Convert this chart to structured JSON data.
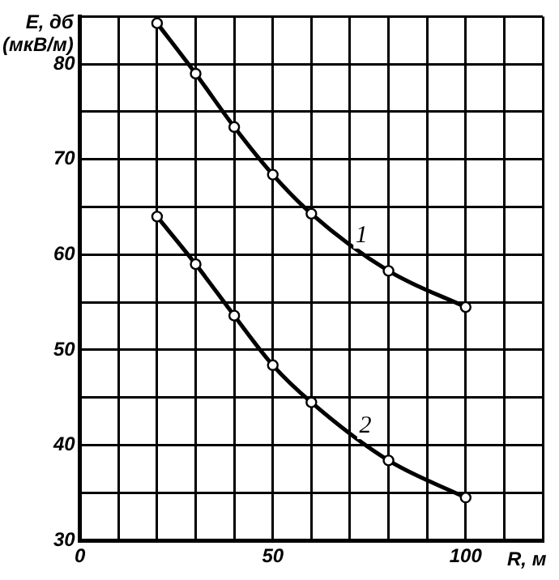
{
  "chart_data": {
    "type": "line",
    "ylabel": "E, дб (мкВ/м)",
    "xlabel": "R, м",
    "xlim": [
      0,
      120
    ],
    "ylim": [
      30,
      85
    ],
    "xticks": [
      0,
      {
        "value": 10,
        "label": null
      },
      {
        "value": 20,
        "label": null
      },
      {
        "value": 30,
        "label": null
      },
      {
        "value": 40,
        "label": null
      },
      50,
      {
        "value": 60,
        "label": null
      },
      {
        "value": 70,
        "label": null
      },
      {
        "value": 80,
        "label": null
      },
      {
        "value": 90,
        "label": null
      },
      100,
      {
        "value": 110,
        "label": null
      },
      {
        "value": 120,
        "label": null
      }
    ],
    "yticks": [
      30,
      {
        "value": 35,
        "label": null
      },
      40,
      {
        "value": 45,
        "label": null
      },
      50,
      {
        "value": 55,
        "label": null
      },
      60,
      {
        "value": 65,
        "label": null
      },
      70,
      {
        "value": 75,
        "label": null
      },
      80,
      {
        "value": 85,
        "label": null
      }
    ],
    "grid": true,
    "marker": "circle",
    "line_style": "solid",
    "series": [
      {
        "color": "#000000",
        "x": [
          20,
          30,
          40,
          50,
          60,
          80,
          100
        ],
        "values": [
          84.3,
          79,
          73.4,
          68.4,
          64.3,
          58.3,
          54.5
        ]
      },
      {
        "color": "#000000",
        "x": [
          20,
          30,
          40,
          50,
          60,
          80,
          100
        ],
        "values": [
          64,
          59,
          53.6,
          48.4,
          44.5,
          38.4,
          34.5
        ]
      }
    ],
    "annotations": [
      {
        "text": "1",
        "x": 73,
        "y": 62
      },
      {
        "text": "2",
        "x": 74,
        "y": 42
      }
    ]
  }
}
